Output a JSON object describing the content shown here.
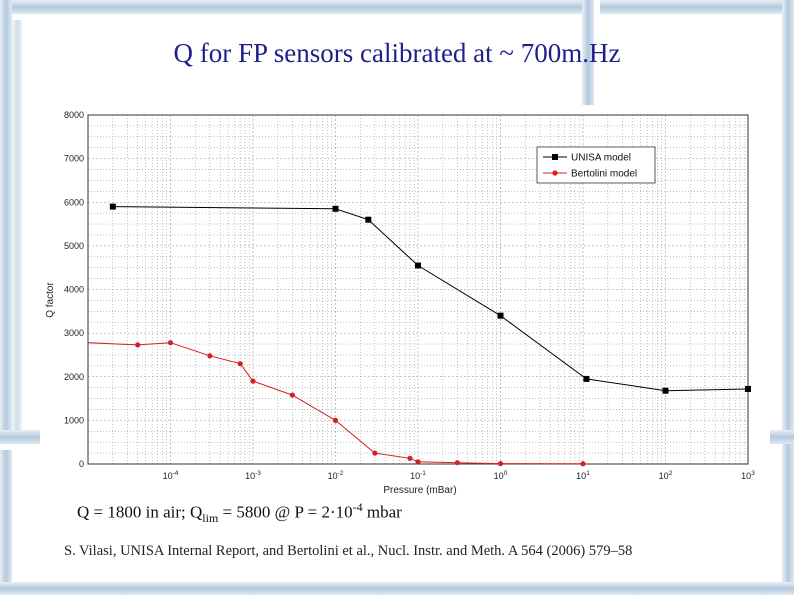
{
  "slide": {
    "title": "Q for FP sensors calibrated at ~ 700m.Hz",
    "caption": {
      "part1": "Q = 1800 in air; Q",
      "sub": "lim",
      "part2": " = 5800 @ P = 2·10",
      "sup": "-4",
      "part3": " mbar"
    },
    "reference": "S. Vilasi, UNISA Internal Report, and Bertolini et al., Nucl. Instr. and Meth. A 564 (2006) 579–58"
  },
  "colors": {
    "title": "#1f1f8a",
    "frame": "#b8cde0",
    "unisa": "#000000",
    "bertolini": "#d32020",
    "grid": "#9a9a9a"
  },
  "chart_data": {
    "type": "line",
    "xlabel": "Pressure (mBar)",
    "ylabel": "Q factor",
    "xscale": "log",
    "xlim": [
      1e-05,
      1000
    ],
    "ylim": [
      0,
      8000
    ],
    "xticks": [
      {
        "value": 0.0001,
        "base": "10",
        "exp": "-4"
      },
      {
        "value": 0.001,
        "base": "10",
        "exp": "-3"
      },
      {
        "value": 0.01,
        "base": "10",
        "exp": "-2"
      },
      {
        "value": 0.1,
        "base": "10",
        "exp": "-1"
      },
      {
        "value": 1,
        "base": "10",
        "exp": "0"
      },
      {
        "value": 10,
        "base": "10",
        "exp": "1"
      },
      {
        "value": 100,
        "base": "10",
        "exp": "2"
      },
      {
        "value": 1000,
        "base": "10",
        "exp": "3"
      }
    ],
    "yticks": [
      0,
      1000,
      2000,
      3000,
      4000,
      5000,
      6000,
      7000,
      8000
    ],
    "grid": true,
    "legend_position": "top-right",
    "series": [
      {
        "name": "UNISA model",
        "color": "#000000",
        "marker": "square",
        "x": [
          2e-05,
          0.01,
          0.025,
          0.1,
          1,
          11,
          100,
          1000
        ],
        "y": [
          5900,
          5850,
          5600,
          4550,
          3400,
          1950,
          1680,
          1720
        ]
      },
      {
        "name": "Bertolini model",
        "color": "#d32020",
        "marker": "circle",
        "x": [
          1e-05,
          4e-05,
          0.0001,
          0.0003,
          0.0007,
          0.001,
          0.003,
          0.01,
          0.03,
          0.08,
          0.1,
          0.3,
          1,
          10
        ],
        "y": [
          2780,
          2730,
          2780,
          2480,
          2300,
          1900,
          1580,
          1000,
          250,
          130,
          50,
          30,
          10,
          5
        ]
      }
    ]
  }
}
